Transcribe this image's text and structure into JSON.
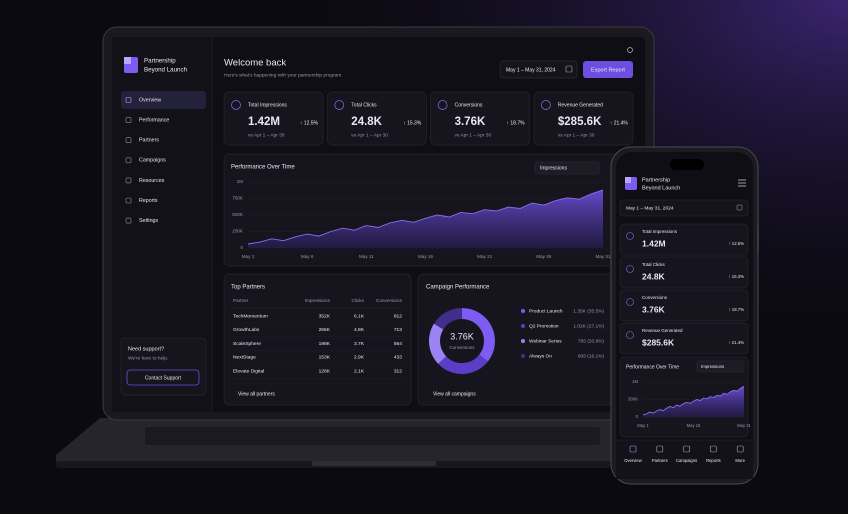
{
  "laptop": {
    "brand": {
      "line1": "Partnership",
      "line2": "Beyond Launch"
    },
    "nav": [
      "Overview",
      "Performance",
      "Partners",
      "Campaigns",
      "Resources",
      "Reports",
      "Settings"
    ],
    "support": {
      "title": "Need support?",
      "text": "We're here to help.",
      "button": "Contact Support"
    },
    "header": {
      "title": "Welcome back",
      "subtitle": "Here's what's happening with your partnership program.",
      "date_range": "May 1 – May 31, 2024",
      "export": "Export Report"
    },
    "kpis": [
      {
        "label": "Total Impressions",
        "value": "1.42M",
        "change": "↑ 12.5%",
        "compare": "vs Apr 1 – Apr 30"
      },
      {
        "label": "Total Clicks",
        "value": "24.8K",
        "change": "↑ 15.3%",
        "compare": "vs Apr 1 – Apr 30"
      },
      {
        "label": "Conversions",
        "value": "3.76K",
        "change": "↑ 18.7%",
        "compare": "vs Apr 1 – Apr 30"
      },
      {
        "label": "Revenue Generated",
        "value": "$285.6K",
        "change": "↑ 21.4%",
        "compare": "vs Apr 1 – Apr 30"
      }
    ],
    "performance": {
      "title": "Performance Over Time",
      "metric": "Impressions",
      "chart_data": {
        "type": "area",
        "color": "#8b6cf0",
        "categories": [
          "May 1",
          null,
          null,
          null,
          null,
          "May 6",
          null,
          null,
          null,
          null,
          "May 11",
          null,
          null,
          null,
          null,
          "May 16",
          null,
          null,
          null,
          null,
          "May 21",
          null,
          null,
          null,
          null,
          "May 26",
          null,
          null,
          null,
          null,
          "May 31"
        ],
        "values": [
          60000,
          90000,
          140000,
          110000,
          170000,
          210000,
          180000,
          250000,
          300000,
          270000,
          340000,
          310000,
          380000,
          420000,
          390000,
          450000,
          500000,
          470000,
          540000,
          520000,
          580000,
          560000,
          620000,
          600000,
          680000,
          650000,
          720000,
          760000,
          740000,
          820000,
          880000
        ],
        "ylim": [
          0,
          1000000
        ],
        "yticks": [
          0,
          {
            "value": 250000,
            "label": "250K"
          },
          {
            "value": 500000,
            "label": "500K"
          },
          {
            "value": 750000,
            "label": "750K"
          },
          {
            "value": 1000000,
            "label": "1M"
          }
        ],
        "grid": true
      }
    },
    "top_partners": {
      "title": "Top Partners",
      "columns": [
        "Partner",
        "Impressions",
        "Clicks",
        "Conversions"
      ],
      "rows": [
        [
          "TechMomentum",
          "352K",
          "6.1K",
          "812"
        ],
        [
          "GrowthLabs",
          "265K",
          "4.8K",
          "713"
        ],
        [
          "ScaleSphere",
          "198K",
          "3.7K",
          "564"
        ],
        [
          "NextStage",
          "153K",
          "2.9K",
          "433"
        ],
        [
          "Elevate Digital",
          "128K",
          "2.1K",
          "312"
        ]
      ],
      "link": "View all partners"
    },
    "campaign_performance": {
      "title": "Campaign Performance",
      "chart_data": {
        "type": "pie",
        "total": "3.76K",
        "total_label": "Conversions",
        "categories": [
          "Product Launch",
          "Q2 Promotion",
          "Webinar Series",
          "Always On"
        ],
        "values": [
          35.5,
          27.1,
          20.9,
          16.1
        ],
        "value_labels": [
          "1.35K (35.5%)",
          "1.02K (27.1%)",
          "785 (20.9%)",
          "605 (16.1%)"
        ],
        "colors": [
          "#7c5cf2",
          "#5a3fc6",
          "#9a84f4",
          "#3f2e8c"
        ]
      },
      "link": "View all campaigns"
    }
  },
  "phone": {
    "chart_data": {
      "type": "area",
      "color": "#8b6cf0",
      "categories": [
        "May 1",
        null,
        null,
        null,
        null,
        null,
        null,
        null,
        null,
        null,
        null,
        null,
        null,
        null,
        null,
        "May 16",
        null,
        null,
        null,
        null,
        null,
        null,
        null,
        null,
        null,
        null,
        null,
        null,
        null,
        null,
        "May 31"
      ],
      "values": [
        60000,
        90000,
        140000,
        110000,
        170000,
        210000,
        180000,
        250000,
        300000,
        270000,
        340000,
        310000,
        380000,
        420000,
        390000,
        450000,
        500000,
        470000,
        540000,
        520000,
        580000,
        560000,
        620000,
        600000,
        680000,
        650000,
        720000,
        760000,
        740000,
        820000,
        880000
      ],
      "ylim": [
        0,
        1000000
      ],
      "yticks": [
        0,
        {
          "value": 500000,
          "label": "500K"
        },
        {
          "value": 1000000,
          "label": "1M"
        }
      ],
      "grid": true
    },
    "tabs": [
      "Overview",
      "Partners",
      "Campaigns",
      "Reports",
      "More"
    ]
  }
}
